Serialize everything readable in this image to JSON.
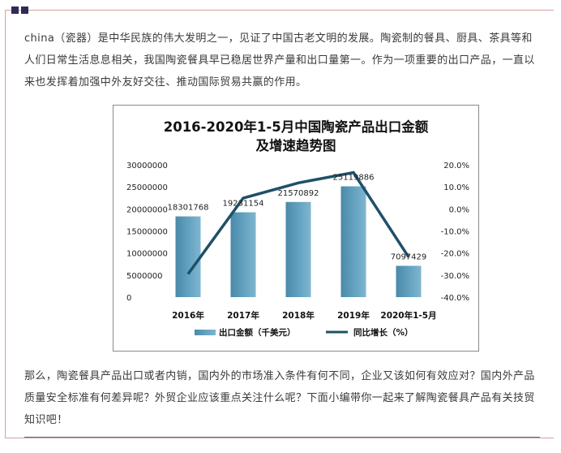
{
  "intro": "china（瓷器）是中华民族的伟大发明之一，见证了中国古老文明的发展。陶瓷制的餐具、厨具、茶具等和人们日常生活息息相关，我国陶瓷餐具早已稳居世界产量和出口量第一。作为一项重要的出口产品，一直以来也发挥着加强中外友好交往、推动国际贸易共赢的作用。",
  "outro": "那么，陶瓷餐具产品出口或者内销，国内外的市场准入条件有何不同，企业又该如何有效应对？国内外产品质量安全标准有何差异呢？外贸企业应该重点关注什么呢？下面小编带你一起来了解陶瓷餐具产品有关技贸知识吧！",
  "colors": {
    "bar": "#5f9fbd",
    "line": "#1f5068",
    "frame": "#d9a0a0",
    "corner": "#2b2b5c"
  },
  "chart_data": {
    "type": "bar+line",
    "title_line1": "2016-2020年1-5月中国陶瓷产品出口金额",
    "title_line2": "及增速趋势图",
    "categories": [
      "2016年",
      "2017年",
      "2018年",
      "2019年",
      "2020年1-5月"
    ],
    "series": [
      {
        "name": "出口金额（千美元）",
        "type": "bar",
        "axis": "left",
        "values": [
          18301768,
          19231154,
          21570892,
          25119886,
          7097429
        ],
        "labels": [
          "18301768",
          "19231154",
          "21570892",
          "25119886",
          "7097429"
        ]
      },
      {
        "name": "同比增长（%）",
        "type": "line",
        "axis": "right",
        "values": [
          -29.5,
          4.9,
          11.8,
          16.5,
          -21.8
        ]
      }
    ],
    "left_axis": {
      "ylim": [
        0,
        30000000
      ],
      "ticks": [
        "30000000",
        "25000000",
        "20000000",
        "15000000",
        "10000000",
        "5000000",
        "0"
      ]
    },
    "right_axis": {
      "ylim": [
        -40,
        20
      ],
      "ticks": [
        "20.0%",
        "10.0%",
        "0.0%",
        "-10.0%",
        "-20.0%",
        "-30.0%",
        "-40.0%"
      ]
    },
    "grid": false,
    "legend_position": "bottom"
  }
}
